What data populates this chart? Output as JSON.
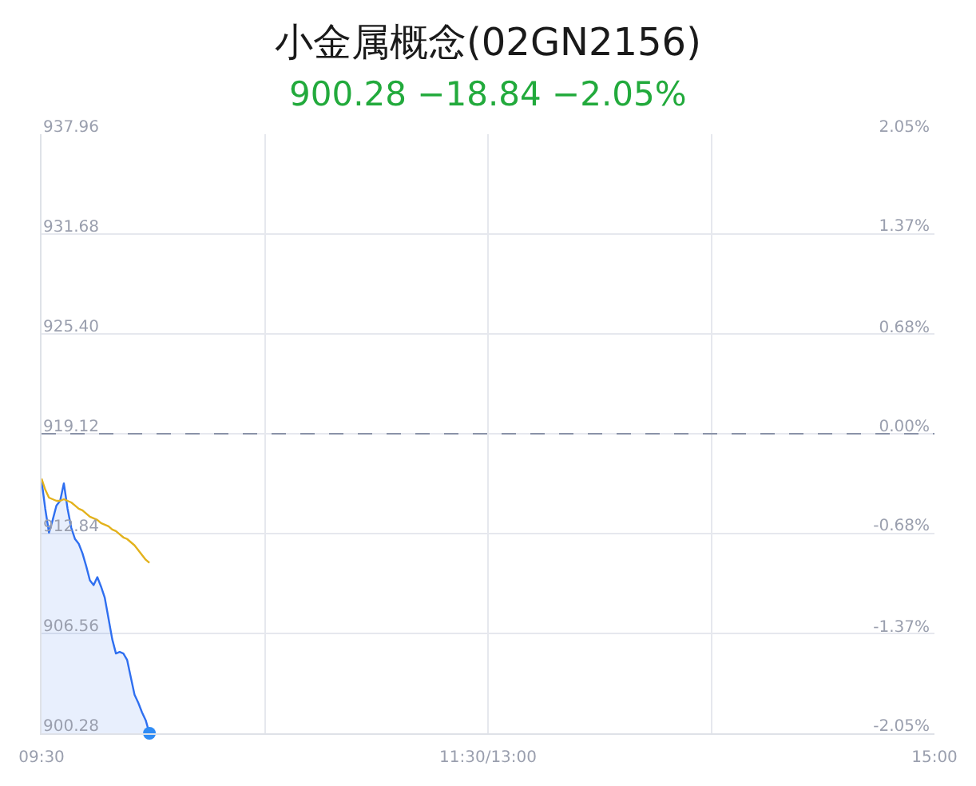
{
  "chart_data": {
    "type": "area",
    "title": "小金属概念(02GN2156)",
    "subtitle": "900.28 −18.84 −2.05%",
    "categories": [
      "09:30",
      null,
      null,
      null,
      null,
      null,
      null,
      null,
      null,
      null,
      null,
      null,
      null,
      null,
      null,
      null,
      null,
      null,
      null,
      null,
      null,
      null,
      null,
      null,
      null,
      null,
      null,
      null,
      null,
      null,
      null,
      null,
      null,
      null,
      null,
      null,
      null,
      null,
      null,
      null,
      null,
      null,
      null,
      null,
      null,
      null,
      null,
      null,
      null,
      null,
      null,
      null,
      null,
      null,
      null,
      null,
      null,
      null,
      null,
      null,
      null,
      null,
      null,
      null,
      null,
      null,
      null,
      null,
      null,
      null,
      null,
      null,
      null,
      null,
      null,
      null,
      null,
      null,
      null,
      null,
      null,
      null,
      null,
      null,
      null,
      null,
      null,
      null,
      null,
      null,
      null,
      null,
      null,
      null,
      null,
      null,
      null,
      null,
      null,
      null,
      null,
      null,
      null,
      null,
      null,
      null,
      null,
      null,
      null,
      null,
      null,
      null,
      null,
      null,
      null,
      null,
      null,
      null,
      null,
      null,
      "11:30/13:00",
      null,
      null,
      null,
      null,
      null,
      null,
      null,
      null,
      null,
      null,
      null,
      null,
      null,
      null,
      null,
      null,
      null,
      null,
      null,
      null,
      null,
      null,
      null,
      null,
      null,
      null,
      null,
      null,
      null,
      null,
      null,
      null,
      null,
      null,
      null,
      null,
      null,
      null,
      null,
      null,
      null,
      null,
      null,
      null,
      null,
      null,
      null,
      null,
      null,
      null,
      null,
      null,
      null,
      null,
      null,
      null,
      null,
      null,
      null,
      null,
      null,
      null,
      null,
      null,
      null,
      null,
      null,
      null,
      null,
      null,
      null,
      null,
      null,
      null,
      null,
      null,
      null,
      null,
      null,
      null,
      null,
      null,
      null,
      null,
      null,
      null,
      null,
      null,
      null,
      null,
      null,
      null,
      null,
      null,
      null,
      null,
      null,
      null,
      null,
      null,
      null,
      null,
      null,
      null,
      null,
      null,
      null,
      null,
      null,
      null,
      null,
      null,
      null,
      null,
      null,
      null,
      null,
      null,
      null,
      "15:00"
    ],
    "series": [
      {
        "color": "#2f6ff0",
        "values": [
          916.2,
          914.4,
          912.9,
          913.7,
          914.6,
          914.9,
          916.0,
          914.4,
          913.2,
          912.5,
          912.2,
          911.6,
          910.8,
          909.9,
          909.6,
          910.1,
          909.5,
          908.8,
          907.5,
          906.2,
          905.3,
          905.4,
          905.3,
          904.9,
          903.8,
          902.7,
          902.2,
          901.6,
          901.1,
          900.28,
          null,
          null,
          null,
          null,
          null,
          null,
          null,
          null,
          null,
          null,
          null,
          null,
          null,
          null,
          null,
          null,
          null,
          null,
          null,
          null,
          null,
          null,
          null,
          null,
          null,
          null,
          null,
          null,
          null,
          null,
          null,
          null,
          null,
          null,
          null,
          null,
          null,
          null,
          null,
          null,
          null,
          null,
          null,
          null,
          null,
          null,
          null,
          null,
          null,
          null,
          null,
          null,
          null,
          null,
          null,
          null,
          null,
          null,
          null,
          null,
          null,
          null,
          null,
          null,
          null,
          null,
          null,
          null,
          null,
          null,
          null,
          null,
          null,
          null,
          null,
          null,
          null,
          null,
          null,
          null,
          null,
          null,
          null,
          null,
          null,
          null,
          null,
          null,
          null,
          null,
          null,
          null,
          null,
          null,
          null,
          null,
          null,
          null,
          null,
          null,
          null,
          null,
          null,
          null,
          null,
          null,
          null,
          null,
          null,
          null,
          null,
          null,
          null,
          null,
          null,
          null,
          null,
          null,
          null,
          null,
          null,
          null,
          null,
          null,
          null,
          null,
          null,
          null,
          null,
          null,
          null,
          null,
          null,
          null,
          null,
          null,
          null,
          null,
          null,
          null,
          null,
          null,
          null,
          null,
          null,
          null,
          null,
          null,
          null,
          null,
          null,
          null,
          null,
          null,
          null,
          null,
          null,
          null,
          null,
          null,
          null,
          null,
          null,
          null,
          null,
          null,
          null,
          null,
          null,
          null,
          null,
          null,
          null,
          null,
          null,
          null,
          null,
          null,
          null,
          null,
          null,
          null,
          null,
          null,
          null,
          null,
          null,
          null,
          null,
          null,
          null,
          null,
          null,
          null,
          null,
          null,
          null,
          null,
          null,
          null,
          null,
          null,
          null,
          null,
          null,
          null,
          null,
          null,
          null,
          null,
          null
        ]
      },
      {
        "type": "line",
        "color": "#e3b21c",
        "values": [
          916.3,
          915.6,
          915.1,
          915.0,
          914.9,
          914.9,
          915.0,
          914.9,
          914.8,
          914.6,
          914.4,
          914.3,
          914.1,
          913.9,
          913.8,
          913.7,
          913.5,
          913.4,
          913.3,
          913.1,
          913.0,
          912.8,
          912.6,
          912.5,
          912.3,
          912.1,
          911.8,
          911.5,
          911.2,
          911.0,
          null,
          null,
          null,
          null,
          null,
          null,
          null,
          null,
          null,
          null,
          null,
          null,
          null,
          null,
          null,
          null,
          null,
          null,
          null,
          null,
          null,
          null,
          null,
          null,
          null,
          null,
          null,
          null,
          null,
          null,
          null,
          null,
          null,
          null,
          null,
          null,
          null,
          null,
          null,
          null,
          null,
          null,
          null,
          null,
          null,
          null,
          null,
          null,
          null,
          null,
          null,
          null,
          null,
          null,
          null,
          null,
          null,
          null,
          null,
          null,
          null,
          null,
          null,
          null,
          null,
          null,
          null,
          null,
          null,
          null,
          null,
          null,
          null,
          null,
          null,
          null,
          null,
          null,
          null,
          null,
          null,
          null,
          null,
          null,
          null,
          null,
          null,
          null,
          null,
          null,
          null,
          null,
          null,
          null,
          null,
          null,
          null,
          null,
          null,
          null,
          null,
          null,
          null,
          null,
          null,
          null,
          null,
          null,
          null,
          null,
          null,
          null,
          null,
          null,
          null,
          null,
          null,
          null,
          null,
          null,
          null,
          null,
          null,
          null,
          null,
          null,
          null,
          null,
          null,
          null,
          null,
          null,
          null,
          null,
          null,
          null,
          null,
          null,
          null,
          null,
          null,
          null,
          null,
          null,
          null,
          null,
          null,
          null,
          null,
          null,
          null,
          null,
          null,
          null,
          null,
          null,
          null,
          null,
          null,
          null,
          null,
          null,
          null,
          null,
          null,
          null,
          null,
          null,
          null,
          null,
          null,
          null,
          null,
          null,
          null,
          null,
          null,
          null,
          null,
          null,
          null,
          null,
          null,
          null,
          null,
          null,
          null,
          null,
          null,
          null,
          null,
          null,
          null,
          null,
          null,
          null,
          null,
          null,
          null,
          null,
          null,
          null,
          null,
          null,
          null,
          null,
          null,
          null,
          null,
          null,
          null
        ]
      },
      {
        "type": "scatter",
        "color": "#2f8cf5",
        "marker": "circle",
        "values": [
          null,
          null,
          null,
          null,
          null,
          null,
          null,
          null,
          null,
          null,
          null,
          null,
          null,
          null,
          null,
          null,
          null,
          null,
          null,
          null,
          null,
          null,
          null,
          null,
          null,
          null,
          null,
          null,
          null,
          900.28,
          null,
          null,
          null,
          null,
          null,
          null,
          null,
          null,
          null,
          null,
          null,
          null,
          null,
          null,
          null,
          null,
          null,
          null,
          null,
          null,
          null,
          null,
          null,
          null,
          null,
          null,
          null,
          null,
          null,
          null,
          null,
          null,
          null,
          null,
          null,
          null,
          null,
          null,
          null,
          null,
          null,
          null,
          null,
          null,
          null,
          null,
          null,
          null,
          null,
          null,
          null,
          null,
          null,
          null,
          null,
          null,
          null,
          null,
          null,
          null,
          null,
          null,
          null,
          null,
          null,
          null,
          null,
          null,
          null,
          null,
          null,
          null,
          null,
          null,
          null,
          null,
          null,
          null,
          null,
          null,
          null,
          null,
          null,
          null,
          null,
          null,
          null,
          null,
          null,
          null,
          null,
          null,
          null,
          null,
          null,
          null,
          null,
          null,
          null,
          null,
          null,
          null,
          null,
          null,
          null,
          null,
          null,
          null,
          null,
          null,
          null,
          null,
          null,
          null,
          null,
          null,
          null,
          null,
          null,
          null,
          null,
          null,
          null,
          null,
          null,
          null,
          null,
          null,
          null,
          null,
          null,
          null,
          null,
          null,
          null,
          null,
          null,
          null,
          null,
          null,
          null,
          null,
          null,
          null,
          null,
          null,
          null,
          null,
          null,
          null,
          null,
          null,
          null,
          null,
          null,
          null,
          null,
          null,
          null,
          null,
          null,
          null,
          null,
          null,
          null,
          null,
          null,
          null,
          null,
          null,
          null,
          null,
          null,
          null,
          null,
          null,
          null,
          null,
          null,
          null,
          null,
          null,
          null,
          null,
          null,
          null,
          null,
          null,
          null,
          null,
          null,
          null,
          null,
          null,
          null,
          null,
          null,
          null,
          null,
          null,
          null,
          null,
          null,
          null,
          null,
          null,
          null,
          null,
          null,
          null,
          null
        ]
      }
    ],
    "ylim": [
      900.28,
      937.96
    ],
    "yticks": [
      900.28,
      906.56,
      912.84,
      919.12,
      {
        "value": 925.4,
        "label": "925.40"
      },
      931.68,
      937.96
    ],
    "y2lim": [
      -2.05,
      2.05
    ],
    "y2ticks": [
      {
        "value": -2.05,
        "label": "-2.05%"
      },
      {
        "value": -1.37,
        "label": "-1.37%"
      },
      {
        "value": -0.68,
        "label": "-0.68%"
      },
      {
        "value": 0,
        "label": "0.00%"
      },
      {
        "value": 0.68,
        "label": "0.68%"
      },
      {
        "value": 1.37,
        "label": "1.37%"
      },
      {
        "value": 2.05,
        "label": "2.05%"
      }
    ],
    "ref_lines": [
      {
        "axis": "y",
        "value": 919.12,
        "color": "#8a93a8",
        "line_style": "dashed"
      }
    ],
    "grid": true
  }
}
